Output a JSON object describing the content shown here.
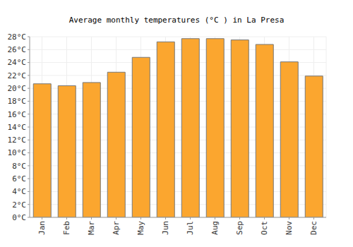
{
  "chart_data": {
    "type": "bar",
    "title": "Average monthly temperatures (°C ) in La Presa",
    "categories": [
      "Jan",
      "Feb",
      "Mar",
      "Apr",
      "May",
      "Jun",
      "Jul",
      "Aug",
      "Sep",
      "Oct",
      "Nov",
      "Dec"
    ],
    "values": [
      20.7,
      20.4,
      20.9,
      22.5,
      24.8,
      27.2,
      27.7,
      27.7,
      27.5,
      26.8,
      24.1,
      21.9
    ],
    "color": "#fba62f",
    "ylim": [
      0,
      28
    ],
    "yticks": [
      {
        "value": 0,
        "label": "0°C"
      },
      {
        "value": 2,
        "label": "2°C"
      },
      {
        "value": 4,
        "label": "4°C"
      },
      {
        "value": 6,
        "label": "6°C"
      },
      {
        "value": 8,
        "label": "8°C"
      },
      {
        "value": 10,
        "label": "10°C"
      },
      {
        "value": 12,
        "label": "12°C"
      },
      {
        "value": 14,
        "label": "14°C"
      },
      {
        "value": 16,
        "label": "16°C"
      },
      {
        "value": 18,
        "label": "18°C"
      },
      {
        "value": 20,
        "label": "20°C"
      },
      {
        "value": 22,
        "label": "22°C"
      },
      {
        "value": 24,
        "label": "24°C"
      },
      {
        "value": 26,
        "label": "26°C"
      },
      {
        "value": 28,
        "label": "28°C"
      }
    ],
    "grid": true
  }
}
